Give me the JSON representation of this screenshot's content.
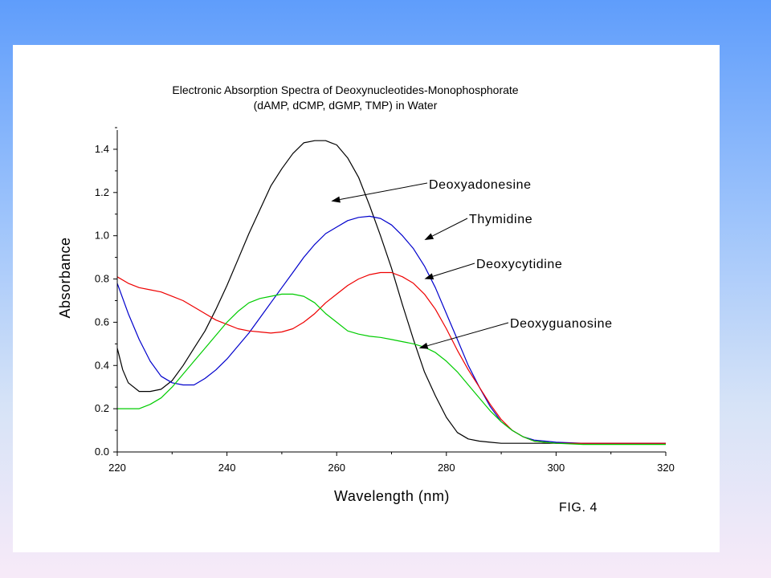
{
  "chart_data": {
    "type": "line",
    "title": "Electronic Absorption Spectra of Deoxynucleotides-Monophosphorate",
    "subtitle": "(dAMP, dCMP, dGMP, TMP) in Water",
    "xlabel": "Wavelength (nm)",
    "ylabel": "Absorbance",
    "xlim": [
      220,
      320
    ],
    "ylim": [
      0,
      1.5
    ],
    "x_ticks": [
      "220",
      "240",
      "260",
      "280",
      "300",
      "320"
    ],
    "y_ticks": [
      "0.0",
      "0.2",
      "0.4",
      "0.6",
      "0.8",
      "1.0",
      "1.2",
      "1.4"
    ],
    "grid": false,
    "legend": "none",
    "figure_label": "FIG. 4",
    "series": [
      {
        "name": "Deoxyadonesine",
        "color": "#000000",
        "x": [
          220,
          221,
          222,
          224,
          226,
          228,
          230,
          232,
          234,
          236,
          238,
          240,
          242,
          244,
          246,
          248,
          250,
          252,
          254,
          256,
          258,
          259,
          260,
          262,
          264,
          266,
          268,
          270,
          272,
          274,
          276,
          278,
          280,
          282,
          284,
          286,
          288,
          290,
          292,
          295,
          300,
          305,
          310,
          320
        ],
        "y": [
          0.48,
          0.38,
          0.32,
          0.28,
          0.28,
          0.29,
          0.33,
          0.4,
          0.48,
          0.56,
          0.66,
          0.77,
          0.89,
          1.01,
          1.12,
          1.23,
          1.31,
          1.38,
          1.43,
          1.44,
          1.44,
          1.43,
          1.42,
          1.36,
          1.27,
          1.14,
          1.0,
          0.85,
          0.68,
          0.52,
          0.37,
          0.26,
          0.16,
          0.09,
          0.06,
          0.05,
          0.045,
          0.04,
          0.04,
          0.04,
          0.04,
          0.04,
          0.04,
          0.04
        ]
      },
      {
        "name": "Thymidine",
        "color": "#0000cc",
        "x": [
          220,
          222,
          224,
          226,
          228,
          230,
          232,
          234,
          236,
          238,
          240,
          242,
          244,
          246,
          248,
          250,
          252,
          254,
          256,
          258,
          260,
          262,
          264,
          266,
          268,
          270,
          272,
          274,
          276,
          278,
          280,
          282,
          284,
          286,
          288,
          290,
          292,
          294,
          296,
          298,
          300,
          305,
          310,
          320
        ],
        "y": [
          0.78,
          0.64,
          0.52,
          0.42,
          0.35,
          0.32,
          0.31,
          0.31,
          0.34,
          0.38,
          0.43,
          0.49,
          0.55,
          0.62,
          0.69,
          0.76,
          0.83,
          0.9,
          0.96,
          1.01,
          1.04,
          1.07,
          1.085,
          1.09,
          1.08,
          1.05,
          1.0,
          0.94,
          0.86,
          0.76,
          0.64,
          0.52,
          0.4,
          0.3,
          0.21,
          0.14,
          0.1,
          0.07,
          0.055,
          0.05,
          0.045,
          0.04,
          0.04,
          0.04
        ]
      },
      {
        "name": "Deoxycytidine",
        "color": "#ee0000",
        "x": [
          220,
          222,
          224,
          226,
          228,
          230,
          232,
          234,
          236,
          238,
          240,
          242,
          244,
          246,
          248,
          250,
          252,
          254,
          256,
          258,
          260,
          262,
          264,
          266,
          268,
          270,
          272,
          274,
          276,
          278,
          280,
          282,
          284,
          286,
          288,
          290,
          292,
          294,
          296,
          298,
          300,
          305,
          310,
          320
        ],
        "y": [
          0.81,
          0.78,
          0.76,
          0.75,
          0.74,
          0.72,
          0.7,
          0.67,
          0.64,
          0.61,
          0.59,
          0.57,
          0.56,
          0.555,
          0.55,
          0.555,
          0.57,
          0.6,
          0.64,
          0.69,
          0.73,
          0.77,
          0.8,
          0.82,
          0.83,
          0.83,
          0.81,
          0.78,
          0.73,
          0.66,
          0.57,
          0.47,
          0.38,
          0.3,
          0.22,
          0.15,
          0.1,
          0.07,
          0.05,
          0.045,
          0.04,
          0.04,
          0.04,
          0.04
        ]
      },
      {
        "name": "Deoxyguanosine",
        "color": "#00cc00",
        "x": [
          220,
          222,
          224,
          226,
          228,
          230,
          232,
          234,
          236,
          238,
          240,
          242,
          244,
          246,
          248,
          250,
          252,
          254,
          256,
          258,
          260,
          262,
          264,
          266,
          268,
          270,
          272,
          274,
          276,
          278,
          280,
          282,
          284,
          286,
          288,
          290,
          292,
          294,
          296,
          298,
          300,
          305,
          310,
          320
        ],
        "y": [
          0.2,
          0.2,
          0.2,
          0.22,
          0.25,
          0.3,
          0.36,
          0.42,
          0.48,
          0.54,
          0.6,
          0.65,
          0.69,
          0.71,
          0.72,
          0.73,
          0.73,
          0.72,
          0.69,
          0.64,
          0.6,
          0.56,
          0.545,
          0.535,
          0.53,
          0.52,
          0.51,
          0.5,
          0.485,
          0.46,
          0.42,
          0.37,
          0.31,
          0.25,
          0.19,
          0.14,
          0.1,
          0.07,
          0.05,
          0.045,
          0.04,
          0.035,
          0.035,
          0.035
        ]
      }
    ],
    "annotations": [
      {
        "text": "Deoxyadonesine",
        "target_x": 259,
        "target_y": 1.16
      },
      {
        "text": "Thymidine",
        "target_x": 276,
        "target_y": 0.98
      },
      {
        "text": "Deoxycytidine",
        "target_x": 276,
        "target_y": 0.8
      },
      {
        "text": "Deoxyguanosine",
        "target_x": 275,
        "target_y": 0.48
      }
    ]
  }
}
